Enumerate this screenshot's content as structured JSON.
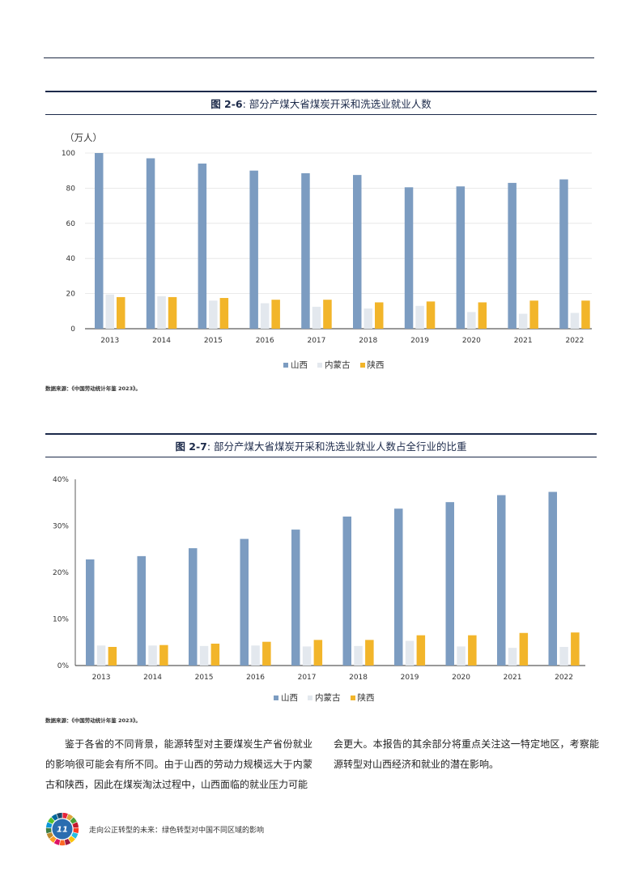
{
  "figure1": {
    "number": "图 2-6",
    "title": ": 部分产煤大省煤炭开采和洗选业就业人数",
    "unit": "（万人）",
    "source": "数据来源：《中国劳动统计年鉴 2023》。",
    "chart_data": {
      "type": "bar",
      "categories": [
        "2013",
        "2014",
        "2015",
        "2016",
        "2017",
        "2018",
        "2019",
        "2020",
        "2021",
        "2022"
      ],
      "ylim": [
        0,
        100
      ],
      "yticks": [
        "0",
        "20",
        "40",
        "60",
        "80",
        "100"
      ],
      "grid": true,
      "legend_position": "bottom-center",
      "series": [
        {
          "name": "山西",
          "color": "#7c9cc1",
          "values": [
            100,
            97,
            94,
            90,
            88.5,
            87.5,
            80.5,
            81,
            83,
            85
          ]
        },
        {
          "name": "内蒙古",
          "color": "#e3e8ee",
          "values": [
            19.5,
            18.5,
            16,
            14.5,
            12.5,
            11.5,
            13,
            9.5,
            8.5,
            9
          ]
        },
        {
          "name": "陕西",
          "color": "#f2b52a",
          "values": [
            18,
            18,
            17.5,
            16.5,
            16.5,
            15,
            15.5,
            15,
            16,
            16
          ]
        }
      ]
    }
  },
  "figure2": {
    "number": "图 2-7",
    "title": ": 部分产煤大省煤炭开采和洗选业就业人数占全行业的比重",
    "source": "数据来源：《中国劳动统计年鉴 2023》。",
    "chart_data": {
      "type": "bar",
      "categories": [
        "2013",
        "2014",
        "2015",
        "2016",
        "2017",
        "2018",
        "2019",
        "2020",
        "2021",
        "2022"
      ],
      "ylim": [
        0,
        40
      ],
      "yticks": [
        "0%",
        "10%",
        "20%",
        "30%",
        "40%"
      ],
      "grid": false,
      "legend_position": "bottom-center",
      "series": [
        {
          "name": "山西",
          "color": "#7c9cc1",
          "values": [
            22.8,
            23.5,
            25.2,
            27.2,
            29.2,
            32,
            33.7,
            35.1,
            36.6,
            37.3
          ]
        },
        {
          "name": "内蒙古",
          "color": "#e3e8ee",
          "values": [
            4.3,
            4.3,
            4.2,
            4.3,
            4.1,
            4.2,
            5.3,
            4.1,
            3.8,
            4.0
          ]
        },
        {
          "name": "陕西",
          "color": "#f2b52a",
          "values": [
            4.0,
            4.4,
            4.7,
            5.1,
            5.5,
            5.5,
            6.5,
            6.5,
            7.0,
            7.1
          ]
        }
      ]
    }
  },
  "body": {
    "left": "鉴于各省的不同背景，能源转型对主要煤炭生产省份就业的影响很可能会有所不同。由于山西的劳动力规模远大于内蒙古和陕西，因此在煤炭淘汰过程中，山西面临的就业压力可能",
    "right": "会更大。本报告的其余部分将重点关注这一特定地区，考察能源转型对山西经济和就业的潜在影响。"
  },
  "footer": {
    "page_number": "11",
    "text": "走向公正转型的未来：绿色转型对中国不同区域的影响"
  }
}
